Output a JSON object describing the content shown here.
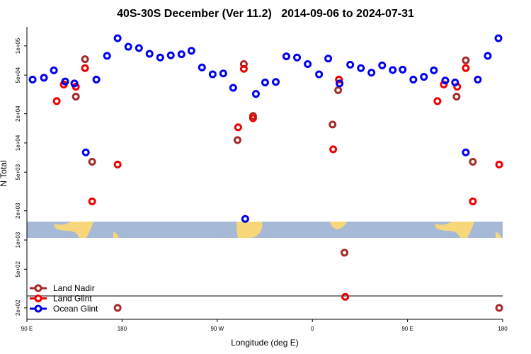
{
  "chart_data": {
    "type": "scatter",
    "title": "40S-30S December (Ver 11.2)   2014-09-06 to 2024-07-31",
    "x_label": "Longitude (deg E)",
    "y_label": "N Total",
    "log_y": true,
    "legend_position": "bottom-left",
    "xlim": [
      90,
      540
    ],
    "xticks": [
      {
        "value": 90,
        "label": "90 E"
      },
      {
        "value": 180,
        "label": "180"
      },
      {
        "value": 270,
        "label": "90 W"
      },
      {
        "value": 360,
        "label": "0"
      },
      {
        "value": 450,
        "label": "90 E"
      },
      {
        "value": 540,
        "label": "180"
      }
    ],
    "ylim": [
      155,
      157000
    ],
    "yticks": [
      {
        "value": 200,
        "label": "2e+02"
      },
      {
        "value": 500,
        "label": "5e+02"
      },
      {
        "value": 1000,
        "label": "1e+03"
      },
      {
        "value": 2000,
        "label": "2e+03"
      },
      {
        "value": 5000,
        "label": "5e+03"
      },
      {
        "value": 10000,
        "label": "1e+04"
      },
      {
        "value": 20000,
        "label": "2e+04"
      },
      {
        "value": 50000,
        "label": "5e+04"
      },
      {
        "value": 100000,
        "label": "1e+05"
      }
    ],
    "series": [
      {
        "name": "Land Nadir",
        "color": "#a52a2a",
        "x": [
          136.3,
          145.0,
          151.7,
          175.8,
          289.2,
          295.2,
          303.9,
          379.1,
          384.4,
          390.4,
          496.4,
          505.1,
          511.8,
          536.7
        ],
        "values": [
          30000,
          73000,
          6400,
          200,
          10700,
          65000,
          19000,
          15500,
          35000,
          740,
          30000,
          71000,
          6400,
          200
        ]
      },
      {
        "name": "Land Glint",
        "color": "#ee0000",
        "x": [
          118.2,
          124.9,
          136.3,
          145.0,
          175.8,
          151.7,
          289.8,
          295.2,
          303.9,
          385.1,
          379.7,
          391.1,
          478.3,
          484.3,
          497.0,
          505.1,
          511.8,
          536.7
        ],
        "values": [
          27000,
          40000,
          38000,
          59000,
          6000,
          2500,
          14500,
          58000,
          18000,
          45000,
          8600,
          260,
          27000,
          40000,
          38000,
          59000,
          2500,
          6000
        ]
      },
      {
        "name": "Ocean Glint",
        "color": "#0000ee",
        "x": [
          95.4,
          106.1,
          115.5,
          126.2,
          134.9,
          145.7,
          155.7,
          165.8,
          175.8,
          185.9,
          196.0,
          206.0,
          216.1,
          226.1,
          236.2,
          245.6,
          255.6,
          265.7,
          275.7,
          285.1,
          296.5,
          306.6,
          315.3,
          325.4,
          335.4,
          345.5,
          355.6,
          366.3,
          375.0,
          385.7,
          395.8,
          405.9,
          415.9,
          426.0,
          436.0,
          445.4,
          455.5,
          465.5,
          474.9,
          485.7,
          495.0,
          505.1,
          516.5,
          525.9,
          536.0
        ],
        "values": [
          45000,
          47000,
          56000,
          43000,
          41000,
          8000,
          45000,
          79000,
          120000,
          98000,
          95000,
          83000,
          76000,
          80000,
          82000,
          89000,
          60000,
          51000,
          52000,
          37000,
          1650,
          32000,
          42000,
          42500,
          78000,
          76000,
          65000,
          51000,
          74000,
          41000,
          64000,
          59000,
          53000,
          63000,
          56500,
          57000,
          45000,
          48000,
          56000,
          44000,
          42000,
          8000,
          45000,
          79000,
          120000
        ]
      }
    ]
  }
}
